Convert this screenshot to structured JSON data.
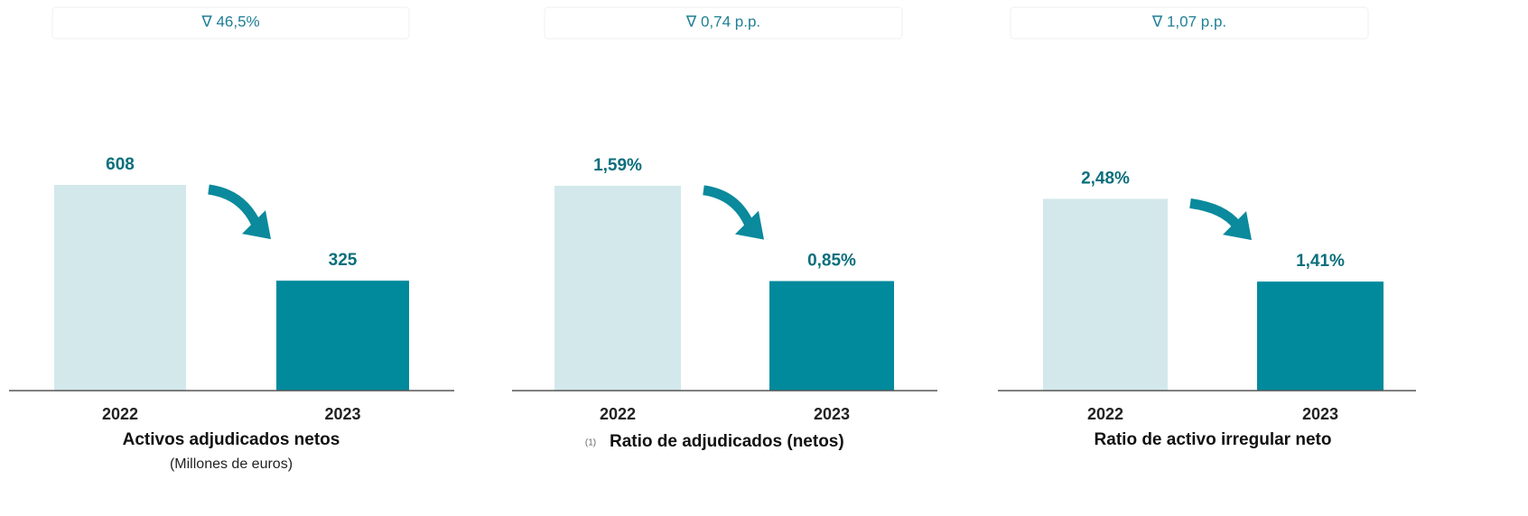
{
  "chart_data": [
    {
      "type": "bar",
      "annotation": "∇ 46,5%",
      "title": "Activos adjudicados netos",
      "subtitle": "(Millones de euros)",
      "categories": [
        "2022",
        "2023"
      ],
      "values": [
        608,
        325
      ],
      "colors": [
        "#d3e8eb",
        "#008a9c"
      ],
      "ylim": [
        0,
        800
      ]
    },
    {
      "type": "bar",
      "annotation": "∇ 0,74 p.p.",
      "title": "Ratio de adjudicados (netos)",
      "footnote": "(1)",
      "categories": [
        "2022",
        "2023"
      ],
      "values": [
        1.59,
        0.85
      ],
      "value_labels": [
        "1,59%",
        "0,85%"
      ],
      "colors": [
        "#d3e8eb",
        "#008a9c"
      ],
      "ylim": [
        0,
        2.1
      ]
    },
    {
      "type": "bar",
      "annotation": "∇ 1,07 p.p.",
      "title": "Ratio de activo irregular neto",
      "categories": [
        "2022",
        "2023"
      ],
      "values": [
        2.48,
        1.41
      ],
      "value_labels": [
        "2,48%",
        "1,41%"
      ],
      "colors": [
        "#d3e8eb",
        "#008a9c"
      ],
      "ylim": [
        0,
        3.5
      ]
    }
  ]
}
